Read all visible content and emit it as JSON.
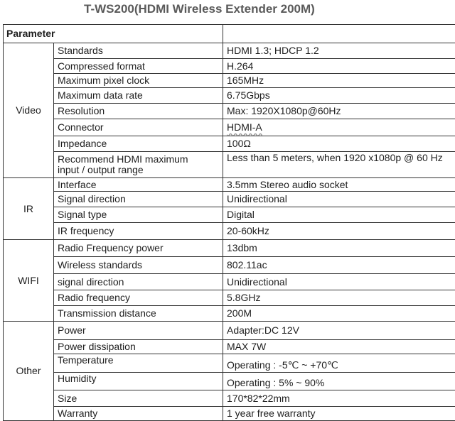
{
  "title": "T-WS200(HDMI Wireless Extender 200M)",
  "header": {
    "parameter": "Parameter",
    "value": ""
  },
  "groups": [
    {
      "name": "Video",
      "rows": [
        {
          "label": "Standards",
          "value": "HDMI 1.3; HDCP 1.2"
        },
        {
          "label": "Compressed format",
          "value": "H.264"
        },
        {
          "label": "Maximum pixel clock",
          "value": "165MHz"
        },
        {
          "label": "Maximum data rate",
          "value": "6.75Gbps"
        },
        {
          "label": "Resolution",
          "value": "Max: 1920X1080p@60Hz"
        },
        {
          "label": "Connector",
          "value": "HDMI-A"
        },
        {
          "label": "Impedance",
          "value": "100Ω"
        },
        {
          "label": "Recommend HDMI maximum\ninput / output range",
          "value": "Less than 5 meters, when 1920 x1080p @ 60 Hz"
        }
      ]
    },
    {
      "name": "IR",
      "rows": [
        {
          "label": "Interface",
          "value": "3.5mm Stereo audio socket"
        },
        {
          "label": "Signal direction",
          "value": "Unidirectional"
        },
        {
          "label": "Signal type",
          "value": "Digital"
        },
        {
          "label": "IR frequency",
          "value": "20-60kHz"
        }
      ]
    },
    {
      "name": "WIFI",
      "rows": [
        {
          "label": "Radio Frequency power",
          "value": "13dbm"
        },
        {
          "label": "Wireless standards",
          "value": "802.11ac"
        },
        {
          "label": "signal direction",
          "value": "Unidirectional"
        },
        {
          "label": "Radio frequency",
          "value": "5.8GHz"
        },
        {
          "label": "Transmission distance",
          "value": "200M"
        }
      ]
    },
    {
      "name": "Other",
      "rows": [
        {
          "label": "Power",
          "value": "Adapter:DC 12V"
        },
        {
          "label": "Power dissipation",
          "value": "MAX 7W"
        },
        {
          "label": "Temperature",
          "value": "Operating : -5℃ ~ +70℃"
        },
        {
          "label": "Humidity",
          "value": "Operating : 5% ~ 90%"
        },
        {
          "label": "Size",
          "value": "170*82*22mm"
        },
        {
          "label": "Warranty",
          "value": "1 year free warranty"
        }
      ]
    }
  ]
}
